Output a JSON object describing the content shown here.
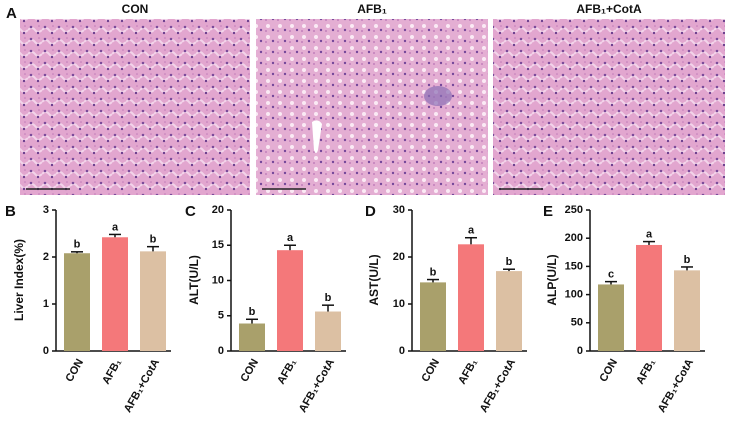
{
  "panel_a": {
    "label": "A",
    "titles": [
      "CON",
      "AFB₁",
      "AFB₁+CotA"
    ]
  },
  "chart_data": [
    {
      "type": "bar",
      "panel_label": "B",
      "y_label": "Liver Index(%)",
      "categories": [
        "CON",
        "AFB₁",
        "AFB₁+CotA"
      ],
      "values": [
        2.08,
        2.42,
        2.12
      ],
      "errors": [
        0.03,
        0.06,
        0.1
      ],
      "letters": [
        "b",
        "a",
        "b"
      ],
      "colors": [
        "#a9a06b",
        "#f4787a",
        "#dcc0a3"
      ],
      "ylim": [
        0,
        3
      ],
      "yticks": [
        0,
        1,
        2,
        3
      ]
    },
    {
      "type": "bar",
      "panel_label": "C",
      "y_label": "ALT(U/L)",
      "categories": [
        "CON",
        "AFB₁",
        "AFB₁+CotA"
      ],
      "values": [
        3.9,
        14.3,
        5.6
      ],
      "errors": [
        0.6,
        0.7,
        0.9
      ],
      "letters": [
        "b",
        "a",
        "b"
      ],
      "colors": [
        "#a9a06b",
        "#f4787a",
        "#dcc0a3"
      ],
      "ylim": [
        0,
        20
      ],
      "yticks": [
        0,
        5,
        10,
        15,
        20
      ]
    },
    {
      "type": "bar",
      "panel_label": "D",
      "y_label": "AST(U/L)",
      "categories": [
        "CON",
        "AFB₁",
        "AFB₁+CotA"
      ],
      "values": [
        14.6,
        22.7,
        17.0
      ],
      "errors": [
        0.6,
        1.4,
        0.4
      ],
      "letters": [
        "b",
        "a",
        "b"
      ],
      "colors": [
        "#a9a06b",
        "#f4787a",
        "#dcc0a3"
      ],
      "ylim": [
        0,
        30
      ],
      "yticks": [
        0,
        10,
        20,
        30
      ]
    },
    {
      "type": "bar",
      "panel_label": "E",
      "y_label": "ALP(U/L)",
      "categories": [
        "CON",
        "AFB₁",
        "AFB₁+CotA"
      ],
      "values": [
        118,
        188,
        143
      ],
      "errors": [
        5,
        6,
        6
      ],
      "letters": [
        "c",
        "a",
        "b"
      ],
      "colors": [
        "#a9a06b",
        "#f4787a",
        "#dcc0a3"
      ],
      "ylim": [
        0,
        250
      ],
      "yticks": [
        0,
        50,
        100,
        150,
        200,
        250
      ]
    }
  ]
}
